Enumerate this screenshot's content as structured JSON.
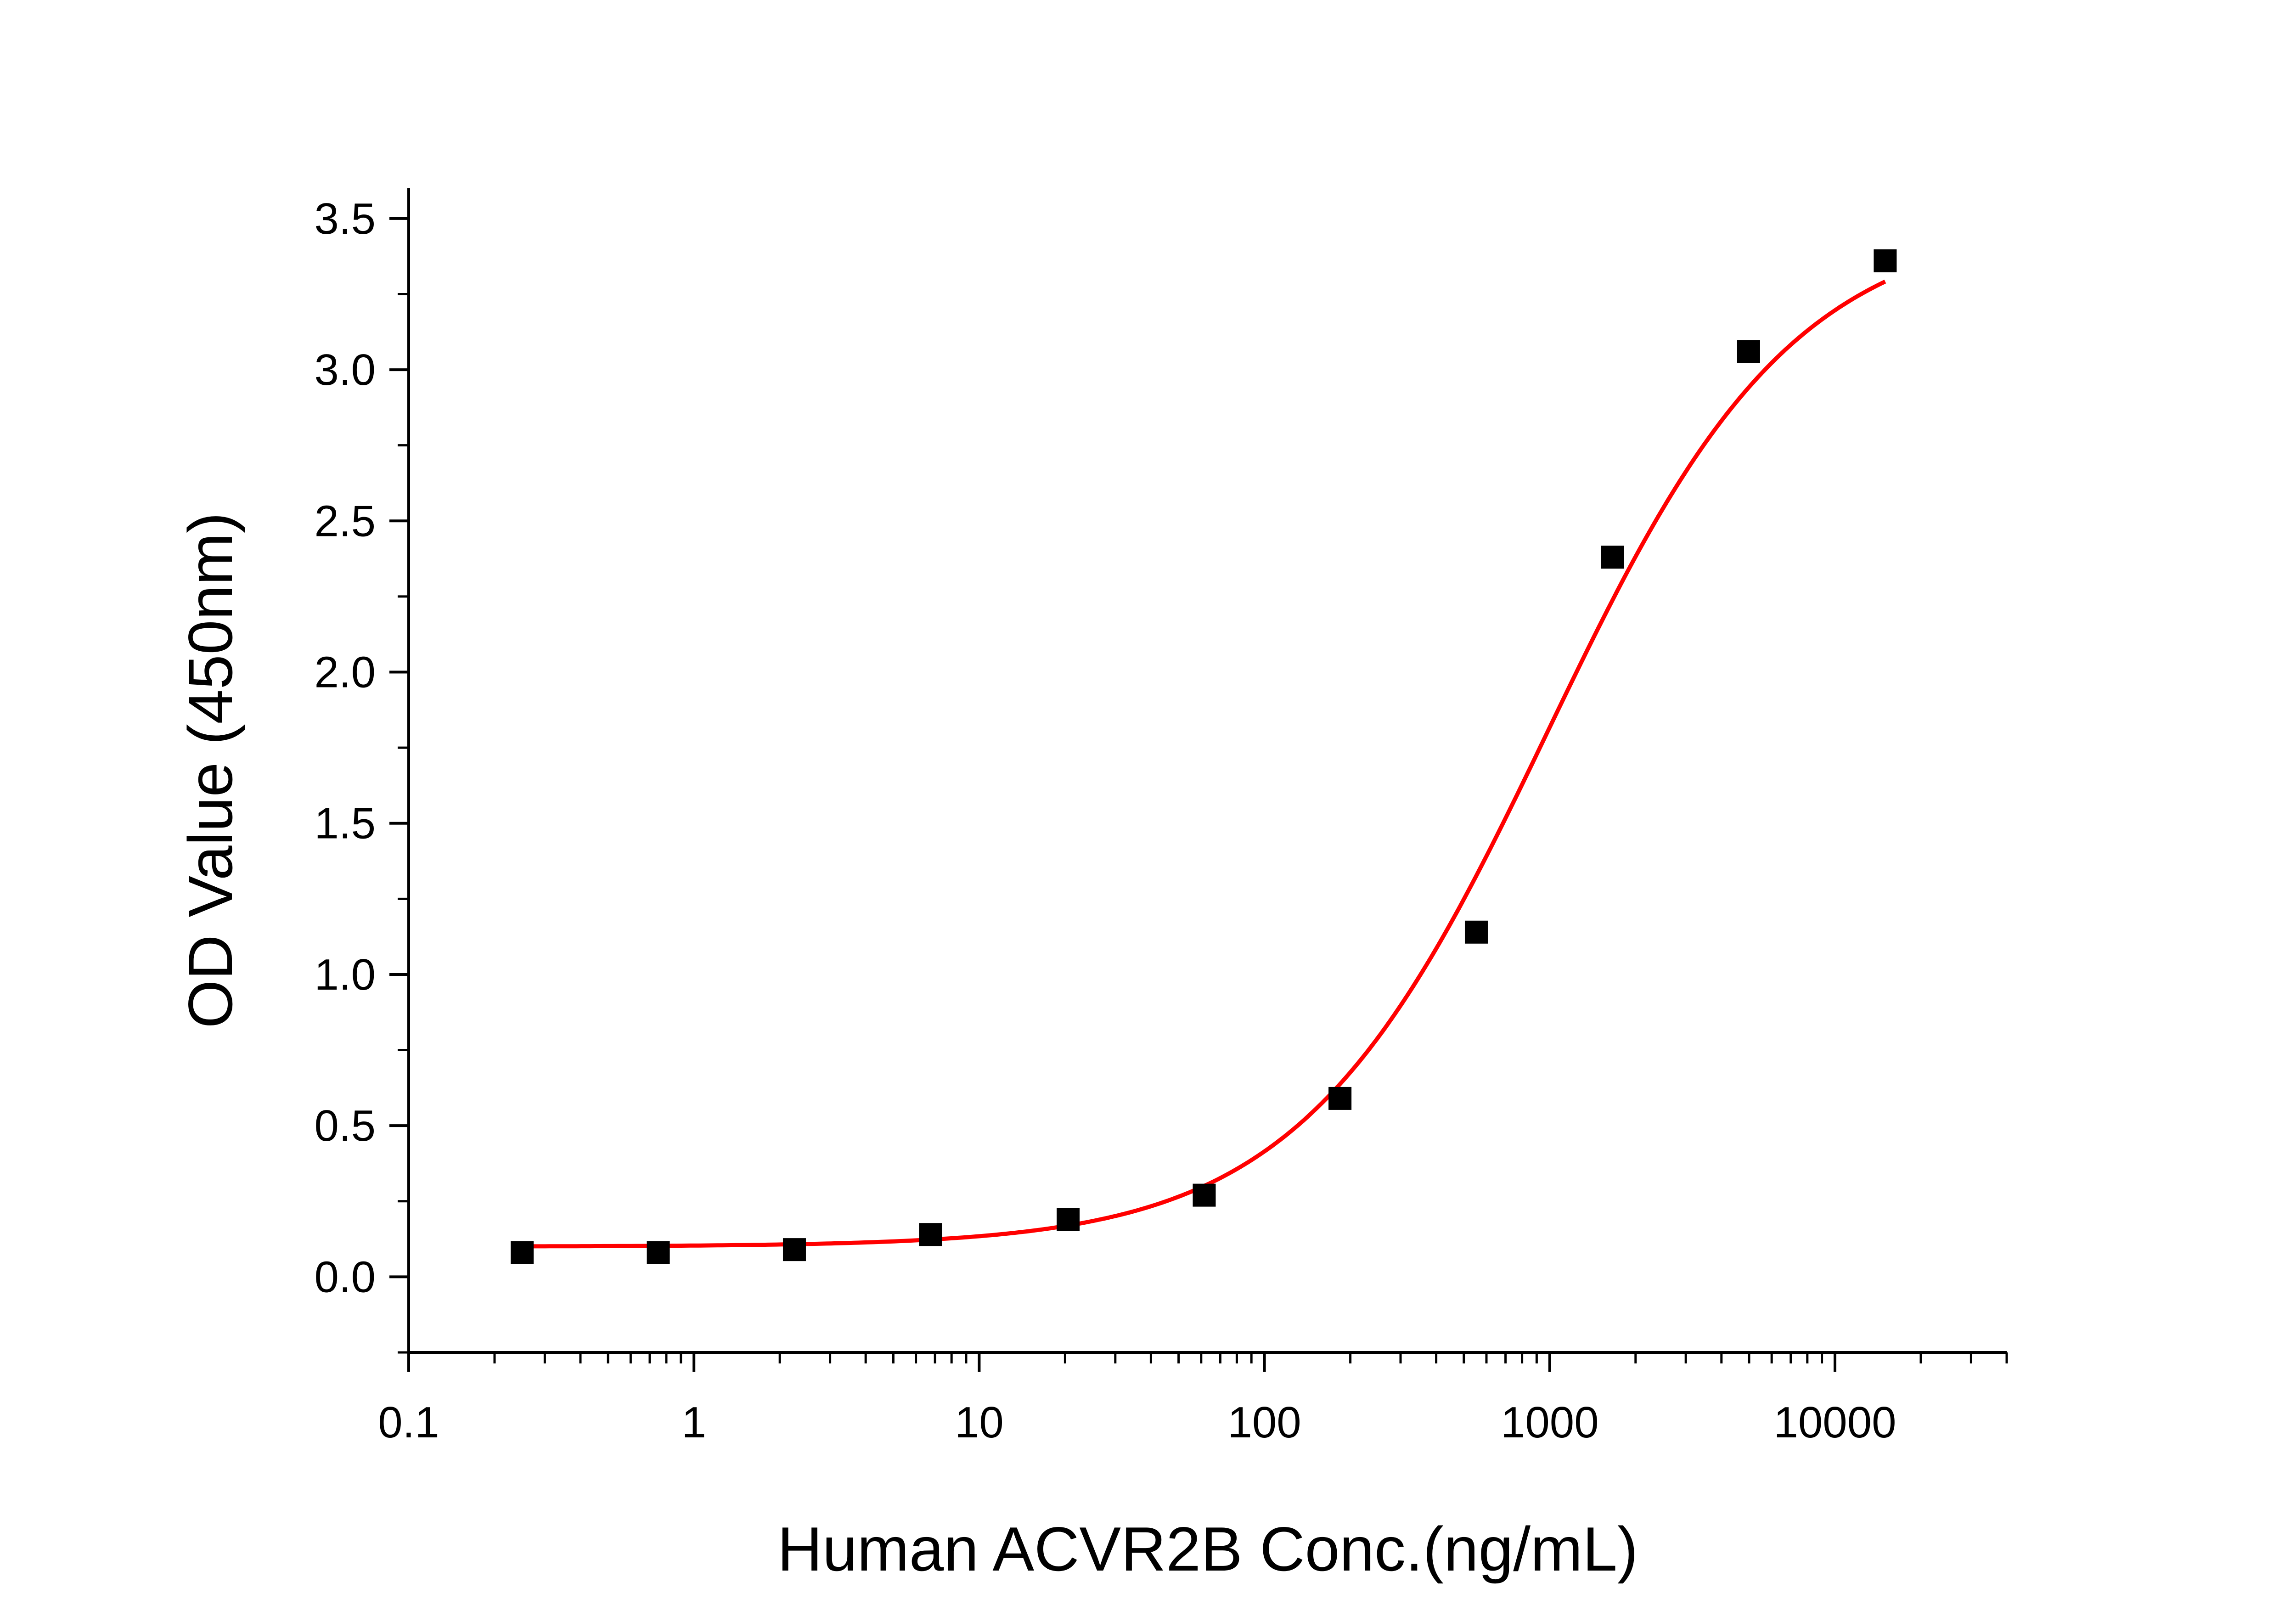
{
  "chart_data": {
    "type": "scatter",
    "xlabel": "Human ACVR2B Conc.(ng/mL)",
    "ylabel": "OD Value (450nm)",
    "x_scale": "log",
    "xlim": [
      0.1,
      40000
    ],
    "ylim": [
      -0.25,
      3.6
    ],
    "x_ticks": [
      {
        "value": 0.1,
        "label": "0.1"
      },
      {
        "value": 1,
        "label": "1"
      },
      {
        "value": 10,
        "label": "10"
      },
      {
        "value": 100,
        "label": "100"
      },
      {
        "value": 1000,
        "label": "1000"
      },
      {
        "value": 10000,
        "label": "10000"
      }
    ],
    "y_ticks": [
      {
        "value": 0.0,
        "label": "0.0"
      },
      {
        "value": 0.5,
        "label": "0.5"
      },
      {
        "value": 1.0,
        "label": "1.0"
      },
      {
        "value": 1.5,
        "label": "1.5"
      },
      {
        "value": 2.0,
        "label": "2.0"
      },
      {
        "value": 2.5,
        "label": "2.5"
      },
      {
        "value": 3.0,
        "label": "3.0"
      },
      {
        "value": 3.5,
        "label": "3.5"
      }
    ],
    "grid": false,
    "series": [
      {
        "marker": "square",
        "color": "#000000",
        "points": [
          {
            "x": 0.25,
            "y": 0.08
          },
          {
            "x": 0.75,
            "y": 0.08
          },
          {
            "x": 2.25,
            "y": 0.09
          },
          {
            "x": 6.75,
            "y": 0.14
          },
          {
            "x": 20.5,
            "y": 0.19
          },
          {
            "x": 61.5,
            "y": 0.27
          },
          {
            "x": 184,
            "y": 0.59
          },
          {
            "x": 553,
            "y": 1.14
          },
          {
            "x": 1660,
            "y": 2.38
          },
          {
            "x": 4980,
            "y": 3.06
          },
          {
            "x": 15000,
            "y": 3.36
          }
        ]
      }
    ],
    "fit_curve": {
      "type": "4PL",
      "color": "#ff0000",
      "bottom": 0.1,
      "top": 3.5,
      "ec50": 980,
      "hill": 1.0,
      "x_range": [
        0.25,
        15000
      ]
    }
  }
}
